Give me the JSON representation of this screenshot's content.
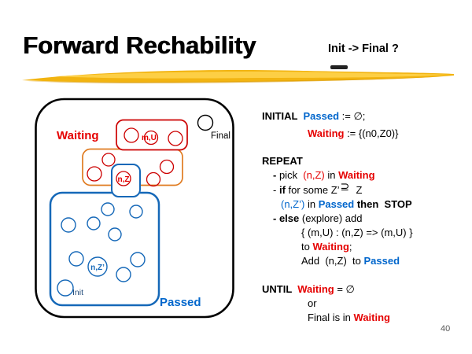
{
  "slide": {
    "title": "Forward Rechability",
    "question": "Init -> Final ?",
    "page_number": "40"
  },
  "palette": {
    "text_black": "#000000",
    "code_red": "#E50000",
    "code_blue": "#0066CC",
    "diagram_red": "#CC0000",
    "diagram_orange": "#E07B20",
    "diagram_blue": "#1568B8",
    "marker_gold": "#F2B411",
    "marker_light": "#FFD34F",
    "marker_dark": "#DB9B07",
    "page_number_gray": "#595959"
  },
  "diagram": {
    "waiting_label": "Waiting",
    "passed_label": "Passed",
    "final_label": "Final",
    "init_label": "Init",
    "state_mu": "m,U",
    "state_nz": "n,Z",
    "state_nzprime": "n,Z’"
  },
  "code": {
    "blocks": [
      {
        "name": "initial",
        "lines": [
          {
            "indent": 0,
            "runs": [
              {
                "t": "INITIAL  ",
                "c": "b"
              },
              {
                "t": "Passed",
                "c": "blue b"
              },
              {
                "t": " := ∅;",
                "c": ""
              }
            ]
          },
          {
            "indent": 58,
            "runs": [
              {
                "t": "Waiting",
                "c": "red b"
              },
              {
                "t": " := {(n0,Z0)}",
                "c": ""
              }
            ]
          }
        ]
      },
      {
        "name": "repeat",
        "lines": [
          {
            "indent": 0,
            "runs": [
              {
                "t": "REPEAT",
                "c": "b"
              }
            ]
          },
          {
            "indent": 14,
            "runs": [
              {
                "t": "- ",
                "c": "b"
              },
              {
                "t": "pick  ",
                "c": ""
              },
              {
                "t": "(n,Z)",
                "c": "red"
              },
              {
                "t": " in ",
                "c": ""
              },
              {
                "t": "Waiting",
                "c": "red b"
              }
            ]
          },
          {
            "indent": 14,
            "runs": [
              {
                "t": "- ",
                "c": ""
              },
              {
                "t": "if",
                "c": "b"
              },
              {
                "t": " for some Z’",
                "c": ""
              },
              {
                "t": "⊇",
                "c": "sup"
              },
              {
                "t": "  Z",
                "c": ""
              }
            ]
          },
          {
            "indent": 24,
            "runs": [
              {
                "t": "(n,Z’)",
                "c": "blue"
              },
              {
                "t": " in ",
                "c": ""
              },
              {
                "t": "Passed",
                "c": "blue b"
              },
              {
                "t": " then",
                "c": "b"
              },
              {
                "t": "  STOP",
                "c": "b"
              }
            ]
          },
          {
            "indent": 14,
            "runs": [
              {
                "t": "- else",
                "c": "b"
              },
              {
                "t": " (explore) add",
                "c": ""
              }
            ]
          },
          {
            "indent": 50,
            "runs": [
              {
                "t": "{ (m,U) : (n,Z) => (m,U) }",
                "c": ""
              }
            ]
          },
          {
            "indent": 50,
            "runs": [
              {
                "t": "to ",
                "c": ""
              },
              {
                "t": "Waiting",
                "c": "red b"
              },
              {
                "t": ";",
                "c": ""
              }
            ]
          },
          {
            "indent": 50,
            "runs": [
              {
                "t": "Add  (n,Z)  to ",
                "c": ""
              },
              {
                "t": "Passed",
                "c": "blue b"
              }
            ]
          }
        ]
      },
      {
        "name": "until",
        "lines": [
          {
            "indent": 0,
            "runs": [
              {
                "t": "UNTIL  ",
                "c": "b"
              },
              {
                "t": "Waiting",
                "c": "red b"
              },
              {
                "t": " = ∅",
                "c": ""
              }
            ]
          },
          {
            "indent": 58,
            "runs": [
              {
                "t": "or",
                "c": ""
              }
            ]
          },
          {
            "indent": 58,
            "runs": [
              {
                "t": "Final is in ",
                "c": ""
              },
              {
                "t": "Waiting",
                "c": "red b"
              }
            ]
          }
        ]
      }
    ]
  }
}
